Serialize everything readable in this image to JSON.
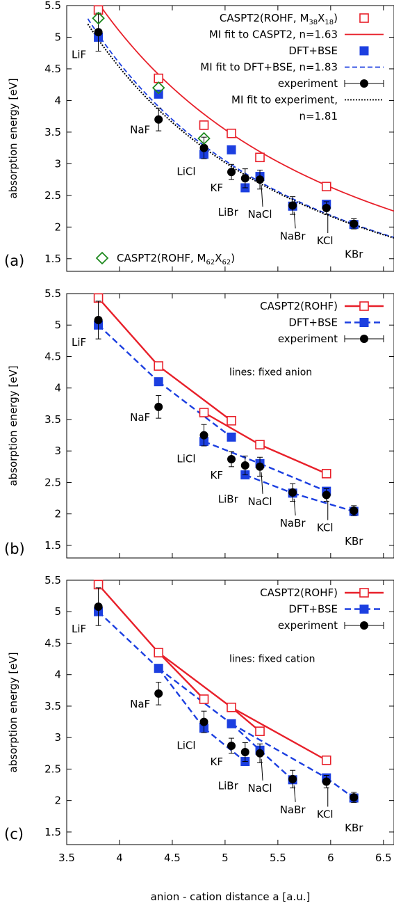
{
  "shared_xlabel": "anion - cation distance a [a.u.]",
  "chart_data": [
    {
      "panel": "(a)",
      "type": "scatter",
      "xlim": [
        3.5,
        6.6
      ],
      "ylim": [
        1.3,
        5.5
      ],
      "xticks": [
        "3.5",
        "4",
        "4.5",
        "5",
        "5.5",
        "6",
        "6.5"
      ],
      "yticks": [
        "1.5",
        "2",
        "2.5",
        "3",
        "3.5",
        "4",
        "4.5",
        "5",
        "5.5"
      ],
      "ylabel": "absorption energy [eV]",
      "xlabel": "",
      "note": "",
      "series": [
        {
          "name": "CASPT2(ROHF, M38X18)",
          "label_main": "CASPT2(ROHF, M",
          "sub1": "38",
          "mid": "X",
          "sub2": "18",
          "label_end": ")",
          "kind": "open-square",
          "color": "#e8202a",
          "x": [
            3.8,
            4.37,
            4.8,
            5.06,
            5.33,
            5.96
          ],
          "y": [
            5.43,
            4.35,
            3.61,
            3.48,
            3.1,
            2.64
          ]
        },
        {
          "name": "MI fit to CASPT2, n=1.63",
          "kind": "curve",
          "style": "solid",
          "color": "#e8202a",
          "A": 48.8,
          "n": 1.63
        },
        {
          "name": "DFT+BSE",
          "kind": "filled-square",
          "color": "#1c3fe0",
          "x": [
            3.8,
            4.37,
            4.8,
            5.06,
            5.19,
            5.33,
            5.64,
            5.96,
            6.22
          ],
          "y": [
            5.0,
            4.1,
            3.15,
            3.22,
            2.62,
            2.8,
            2.33,
            2.36,
            2.04
          ]
        },
        {
          "name": "MI fit to DFT+BSE, n=1.83",
          "kind": "curve",
          "style": "dashed",
          "color": "#1c3fe0",
          "A": 58.0,
          "n": 1.83
        },
        {
          "name": "experiment",
          "kind": "errorbar-point",
          "color": "#000000",
          "x": [
            3.8,
            4.37,
            4.8,
            5.06,
            5.19,
            5.33,
            5.64,
            5.96,
            6.22
          ],
          "y": [
            5.08,
            3.7,
            3.25,
            2.87,
            2.77,
            2.75,
            2.34,
            2.3,
            2.05
          ],
          "err": [
            0.3,
            0.18,
            0.17,
            0.12,
            0.15,
            0.15,
            0.14,
            0.1,
            0.08
          ]
        },
        {
          "name": "MI fit to experiment, n=1.81",
          "label_line1": "MI fit to experiment,",
          "label_line2": "n=1.81",
          "kind": "curve",
          "style": "dotted",
          "color": "#000000",
          "A": 55.6,
          "n": 1.81
        },
        {
          "name": "CASPT2(ROHF, M62X62)",
          "label_main": "CASPT2(ROHF, M",
          "sub1": "62",
          "mid": "X",
          "sub2": "62",
          "label_end": ")",
          "kind": "open-diamond",
          "color": "#1f8a1f",
          "x": [
            3.8,
            4.37,
            4.8
          ],
          "y": [
            5.3,
            4.2,
            3.4
          ]
        }
      ]
    },
    {
      "panel": "(b)",
      "type": "line",
      "xlim": [
        3.5,
        6.6
      ],
      "ylim": [
        1.3,
        5.5
      ],
      "xticks": [
        "3.5",
        "4",
        "4.5",
        "5",
        "5.5",
        "6",
        "6.5"
      ],
      "yticks": [
        "1.5",
        "2",
        "2.5",
        "3",
        "3.5",
        "4",
        "4.5",
        "5",
        "5.5"
      ],
      "ylabel": "absorption energy [eV]",
      "xlabel": "",
      "note": "lines: fixed anion",
      "series": [
        {
          "name": "CASPT2(ROHF)",
          "kind": "open-square-line",
          "color": "#e8202a",
          "x": [
            3.8,
            4.37,
            4.8,
            5.06,
            5.33,
            5.96
          ],
          "y": [
            5.43,
            4.35,
            3.61,
            3.48,
            3.1,
            2.64
          ],
          "segments": [
            [
              3.8,
              5.43,
              4.37,
              4.35
            ],
            [
              4.37,
              4.35,
              5.06,
              3.48
            ],
            [
              4.8,
              3.61,
              5.33,
              3.1
            ],
            [
              5.33,
              3.1,
              5.96,
              2.64
            ]
          ]
        },
        {
          "name": "DFT+BSE",
          "kind": "filled-square-line",
          "color": "#1c3fe0",
          "x": [
            3.8,
            4.37,
            4.8,
            5.06,
            5.19,
            5.33,
            5.64,
            5.96,
            6.22
          ],
          "y": [
            5.0,
            4.1,
            3.15,
            3.22,
            2.62,
            2.8,
            2.33,
            2.36,
            2.04
          ],
          "segments": [
            [
              3.8,
              5.0,
              4.37,
              4.1
            ],
            [
              4.37,
              4.1,
              5.06,
              3.22
            ],
            [
              4.8,
              3.15,
              5.33,
              2.8
            ],
            [
              5.33,
              2.8,
              5.96,
              2.36
            ],
            [
              5.19,
              2.62,
              5.64,
              2.33
            ],
            [
              5.64,
              2.33,
              6.22,
              2.04
            ]
          ]
        },
        {
          "name": "experiment",
          "kind": "errorbar-point",
          "color": "#000000",
          "x": [
            3.8,
            4.37,
            4.8,
            5.06,
            5.19,
            5.33,
            5.64,
            5.96,
            6.22
          ],
          "y": [
            5.08,
            3.7,
            3.25,
            2.87,
            2.77,
            2.75,
            2.34,
            2.3,
            2.05
          ],
          "err": [
            0.3,
            0.18,
            0.17,
            0.12,
            0.15,
            0.15,
            0.14,
            0.1,
            0.08
          ]
        }
      ]
    },
    {
      "panel": "(c)",
      "type": "line",
      "xlim": [
        3.5,
        6.6
      ],
      "ylim": [
        1.3,
        5.5
      ],
      "xticks": [
        "3.5",
        "4",
        "4.5",
        "5",
        "5.5",
        "6",
        "6.5"
      ],
      "yticks": [
        "1.5",
        "2",
        "2.5",
        "3",
        "3.5",
        "4",
        "4.5",
        "5",
        "5.5"
      ],
      "ylabel": "absorption energy [eV]",
      "xlabel": "anion - cation distance a [a.u.]",
      "note": "lines: fixed cation",
      "series": [
        {
          "name": "CASPT2(ROHF)",
          "kind": "open-square-line",
          "color": "#e8202a",
          "x": [
            3.8,
            4.37,
            4.8,
            5.06,
            5.33,
            5.96
          ],
          "y": [
            5.43,
            4.35,
            3.61,
            3.48,
            3.1,
            2.64
          ],
          "segments": [
            [
              3.8,
              5.43,
              4.37,
              4.35
            ],
            [
              4.37,
              4.35,
              4.8,
              3.61
            ],
            [
              4.37,
              4.35,
              5.06,
              3.48
            ],
            [
              5.06,
              3.48,
              5.33,
              3.1
            ],
            [
              5.06,
              3.48,
              5.96,
              2.64
            ]
          ]
        },
        {
          "name": "DFT+BSE",
          "kind": "filled-square-line",
          "color": "#1c3fe0",
          "x": [
            3.8,
            4.37,
            4.8,
            5.06,
            5.19,
            5.33,
            5.64,
            5.96,
            6.22
          ],
          "y": [
            5.0,
            4.1,
            3.15,
            3.22,
            2.62,
            2.8,
            2.33,
            2.36,
            2.04
          ],
          "segments": [
            [
              3.8,
              5.0,
              4.37,
              4.1
            ],
            [
              4.37,
              4.1,
              4.8,
              3.15
            ],
            [
              4.8,
              3.15,
              5.19,
              2.62
            ],
            [
              4.37,
              4.1,
              5.06,
              3.22
            ],
            [
              5.06,
              3.22,
              5.33,
              2.8
            ],
            [
              5.06,
              3.22,
              5.96,
              2.36
            ],
            [
              5.33,
              2.8,
              5.64,
              2.33
            ],
            [
              5.96,
              2.36,
              6.22,
              2.04
            ]
          ]
        },
        {
          "name": "experiment",
          "kind": "errorbar-point",
          "color": "#000000",
          "x": [
            3.8,
            4.37,
            4.8,
            5.06,
            5.19,
            5.33,
            5.64,
            5.96,
            6.22
          ],
          "y": [
            5.08,
            3.7,
            3.25,
            2.87,
            2.77,
            2.75,
            2.34,
            2.3,
            2.05
          ],
          "err": [
            0.3,
            0.18,
            0.17,
            0.12,
            0.15,
            0.15,
            0.14,
            0.1,
            0.08
          ]
        }
      ]
    }
  ],
  "compound_labels": [
    {
      "name": "LiF",
      "x": 3.8,
      "y": 5.0
    },
    {
      "name": "NaF",
      "x": 4.37,
      "y": 3.7
    },
    {
      "name": "LiCl",
      "x": 4.8,
      "y": 3.15
    },
    {
      "name": "KF",
      "x": 5.06,
      "y": 2.87
    },
    {
      "name": "LiBr",
      "x": 5.19,
      "y": 2.62
    },
    {
      "name": "NaCl",
      "x": 5.33,
      "y": 2.75
    },
    {
      "name": "NaBr",
      "x": 5.64,
      "y": 2.33
    },
    {
      "name": "KCl",
      "x": 5.96,
      "y": 2.3
    },
    {
      "name": "KBr",
      "x": 6.22,
      "y": 2.04
    }
  ]
}
